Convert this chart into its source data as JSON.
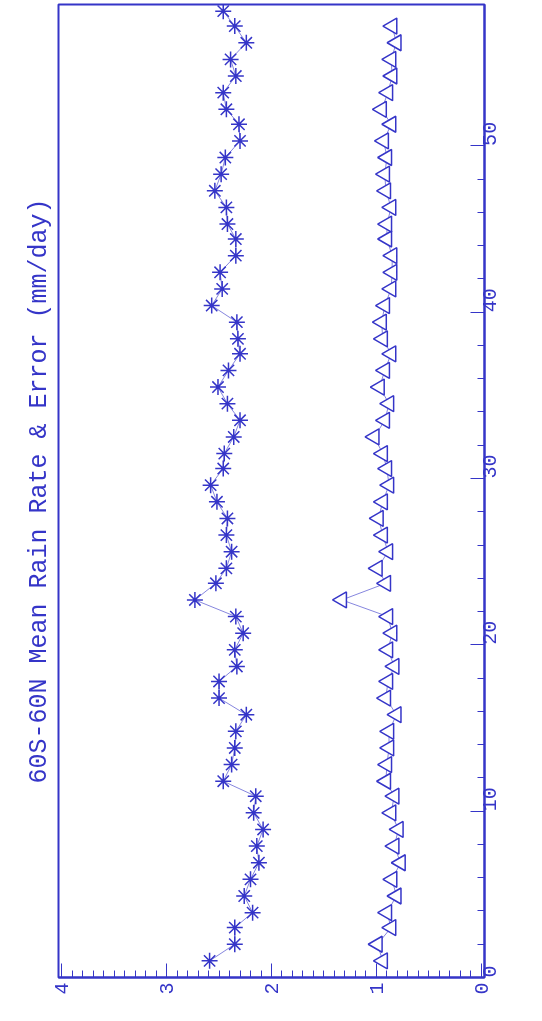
{
  "chart_data": {
    "type": "line",
    "title": "60S-60N Mean Rain Rate & Error (mm/day)",
    "xlim": [
      4.03,
      -0.03
    ],
    "xticks": [
      4,
      3,
      2,
      1,
      0
    ],
    "ylim": [
      0,
      58.5
    ],
    "yticks": [
      0,
      10,
      20,
      30,
      40,
      50
    ],
    "grid": false,
    "line_style": "solid",
    "series": [
      {
        "color": "#3535c8",
        "marker": "cross",
        "x": [
          2.59,
          2.35,
          2.35,
          2.18,
          2.26,
          2.2,
          2.12,
          2.14,
          2.08,
          2.17,
          2.15,
          2.46,
          2.38,
          2.35,
          2.34,
          2.24,
          2.5,
          2.5,
          2.33,
          2.35,
          2.27,
          2.34,
          2.73,
          2.53,
          2.43,
          2.38,
          2.43,
          2.42,
          2.52,
          2.58,
          2.46,
          2.45,
          2.36,
          2.3,
          2.42,
          2.51,
          2.41,
          2.3,
          2.32,
          2.33,
          2.57,
          2.47,
          2.49,
          2.34,
          2.34,
          2.42,
          2.43,
          2.54,
          2.48,
          2.44,
          2.3,
          2.31,
          2.43,
          2.46,
          2.34,
          2.39,
          2.24,
          2.35,
          2.46
        ],
        "values": [
          1.0,
          2.0,
          3.0,
          3.9,
          4.9,
          5.9,
          6.9,
          7.9,
          8.9,
          9.9,
          10.9,
          11.8,
          12.8,
          13.8,
          14.8,
          15.8,
          16.8,
          17.8,
          18.7,
          19.7,
          20.7,
          21.7,
          22.7,
          23.7,
          24.6,
          25.6,
          26.6,
          27.6,
          28.6,
          29.6,
          30.6,
          31.5,
          32.5,
          33.5,
          34.5,
          35.5,
          36.5,
          37.5,
          38.4,
          39.4,
          40.4,
          41.4,
          42.4,
          43.4,
          44.4,
          45.3,
          46.3,
          47.3,
          48.3,
          49.3,
          50.3,
          51.3,
          52.2,
          53.2,
          54.2,
          55.2,
          56.2,
          57.2,
          58.1
        ]
      },
      {
        "color": "#3535c8",
        "marker": "triangle",
        "x": [
          0.94,
          0.99,
          0.86,
          0.9,
          0.81,
          0.85,
          0.77,
          0.83,
          0.79,
          0.86,
          0.83,
          0.91,
          0.9,
          0.88,
          0.88,
          0.81,
          0.91,
          0.89,
          0.83,
          0.89,
          0.85,
          0.89,
          1.33,
          0.91,
          0.99,
          0.89,
          0.94,
          0.98,
          0.94,
          0.88,
          0.9,
          0.94,
          1.02,
          0.92,
          0.88,
          0.97,
          0.92,
          0.86,
          0.94,
          0.95,
          0.92,
          0.86,
          0.85,
          0.85,
          0.9,
          0.9,
          0.86,
          0.91,
          0.92,
          0.9,
          0.93,
          0.86,
          0.95,
          0.89,
          0.85,
          0.86,
          0.81,
          0.85
        ],
        "values": [
          1.0,
          2.0,
          3.0,
          3.9,
          4.9,
          5.9,
          6.9,
          7.9,
          8.9,
          9.9,
          10.9,
          11.8,
          12.8,
          13.8,
          14.8,
          15.8,
          16.8,
          17.8,
          18.7,
          19.7,
          20.7,
          21.7,
          22.7,
          23.7,
          24.6,
          25.6,
          26.6,
          27.6,
          28.6,
          29.6,
          30.6,
          31.5,
          32.5,
          33.5,
          34.5,
          35.5,
          36.5,
          37.5,
          38.4,
          39.4,
          40.4,
          41.4,
          42.4,
          43.4,
          44.4,
          45.3,
          46.3,
          47.3,
          48.3,
          49.3,
          50.3,
          51.3,
          52.2,
          53.2,
          54.2,
          55.2,
          56.2,
          57.2
        ]
      }
    ]
  }
}
